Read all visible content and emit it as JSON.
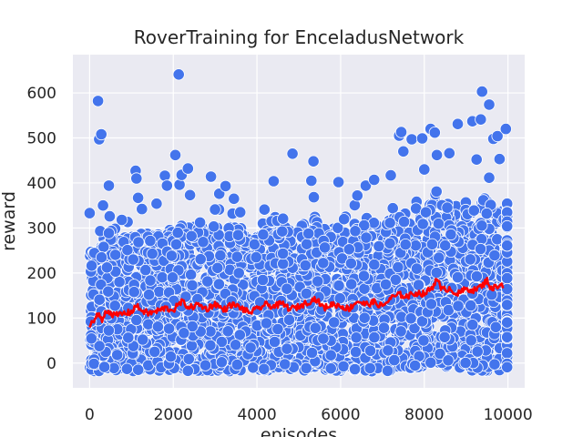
{
  "chart_data": {
    "type": "scatter",
    "title": "RoverTraining for EnceladusNetwork",
    "xlabel": "episodes",
    "ylabel": "reward",
    "xlim": [
      -400,
      10400
    ],
    "ylim": [
      -55,
      685
    ],
    "x_ticks": [
      "0",
      "2000",
      "4000",
      "6000",
      "8000",
      "10000"
    ],
    "x_tick_values": [
      0,
      2000,
      4000,
      6000,
      8000,
      10000
    ],
    "y_ticks": [
      "0",
      "100",
      "200",
      "300",
      "400",
      "500",
      "600"
    ],
    "y_tick_values": [
      0,
      100,
      200,
      300,
      400,
      500,
      600
    ],
    "grid": true,
    "colors": {
      "background": "#eaeaf2",
      "grid": "#ffffff",
      "points": "#4374ec",
      "point_edge": "#ffffff",
      "moving_average": "#ff0000"
    },
    "series": [
      {
        "type": "scatter",
        "approximate": true,
        "outliers": [
          {
            "x": 0,
            "y": 333
          },
          {
            "x": 200,
            "y": 582
          },
          {
            "x": 230,
            "y": 497
          },
          {
            "x": 280,
            "y": 508
          },
          {
            "x": 320,
            "y": 350
          },
          {
            "x": 460,
            "y": 394
          },
          {
            "x": 480,
            "y": 326
          },
          {
            "x": 770,
            "y": 318
          },
          {
            "x": 1100,
            "y": 427
          },
          {
            "x": 1120,
            "y": 410
          },
          {
            "x": 1160,
            "y": 367
          },
          {
            "x": 1250,
            "y": 342
          },
          {
            "x": 1600,
            "y": 354
          },
          {
            "x": 1800,
            "y": 416
          },
          {
            "x": 1850,
            "y": 394
          },
          {
            "x": 2050,
            "y": 462
          },
          {
            "x": 2130,
            "y": 641
          },
          {
            "x": 2150,
            "y": 396
          },
          {
            "x": 2200,
            "y": 418
          },
          {
            "x": 2350,
            "y": 432
          },
          {
            "x": 2400,
            "y": 373
          },
          {
            "x": 2900,
            "y": 414
          },
          {
            "x": 3000,
            "y": 341
          },
          {
            "x": 3100,
            "y": 376
          },
          {
            "x": 3250,
            "y": 393
          },
          {
            "x": 3450,
            "y": 365
          },
          {
            "x": 4400,
            "y": 404
          },
          {
            "x": 4850,
            "y": 465
          },
          {
            "x": 5350,
            "y": 448
          },
          {
            "x": 5300,
            "y": 405
          },
          {
            "x": 5950,
            "y": 402
          },
          {
            "x": 6600,
            "y": 394
          },
          {
            "x": 6800,
            "y": 407
          },
          {
            "x": 7200,
            "y": 417
          },
          {
            "x": 7400,
            "y": 505
          },
          {
            "x": 7450,
            "y": 513
          },
          {
            "x": 7500,
            "y": 470
          },
          {
            "x": 7700,
            "y": 497
          },
          {
            "x": 7950,
            "y": 499
          },
          {
            "x": 8150,
            "y": 520
          },
          {
            "x": 8250,
            "y": 512
          },
          {
            "x": 8300,
            "y": 462
          },
          {
            "x": 8600,
            "y": 466
          },
          {
            "x": 8800,
            "y": 531
          },
          {
            "x": 9150,
            "y": 537
          },
          {
            "x": 9350,
            "y": 541
          },
          {
            "x": 9380,
            "y": 603
          },
          {
            "x": 9550,
            "y": 574
          },
          {
            "x": 9650,
            "y": 498
          },
          {
            "x": 9750,
            "y": 504
          },
          {
            "x": 9950,
            "y": 520
          },
          {
            "x": 9250,
            "y": 452
          },
          {
            "x": 9800,
            "y": 453
          },
          {
            "x": 8000,
            "y": 430
          },
          {
            "x": 6400,
            "y": 372
          },
          {
            "x": 3600,
            "y": 335
          }
        ]
      },
      {
        "type": "line",
        "approximate": true,
        "x": [
          0,
          100,
          200,
          300,
          400,
          500,
          600,
          800,
          1000,
          1100,
          1200,
          1400,
          1600,
          1800,
          2000,
          2200,
          2400,
          2600,
          2800,
          3000,
          3200,
          3400,
          3600,
          3800,
          4000,
          4200,
          4400,
          4600,
          4800,
          5000,
          5200,
          5400,
          5600,
          5800,
          6000,
          6200,
          6400,
          6600,
          6800,
          7000,
          7200,
          7400,
          7600,
          7800,
          8000,
          8200,
          8300,
          8400,
          8600,
          8800,
          9000,
          9200,
          9400,
          9500,
          9600,
          9800,
          9900
        ],
        "y": [
          86,
          93,
          108,
          95,
          118,
          112,
          105,
          110,
          113,
          128,
          120,
          110,
          115,
          122,
          118,
          136,
          123,
          130,
          120,
          132,
          118,
          130,
          124,
          112,
          119,
          130,
          126,
          132,
          120,
          125,
          135,
          143,
          122,
          131,
          127,
          120,
          138,
          130,
          135,
          126,
          144,
          152,
          148,
          156,
          154,
          168,
          192,
          162,
          166,
          153,
          165,
          162,
          173,
          186,
          164,
          175,
          172
        ]
      }
    ]
  }
}
